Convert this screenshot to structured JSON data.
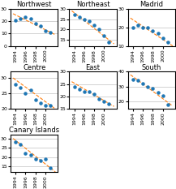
{
  "chart_data": [
    {
      "type": "scatter",
      "title": "Northwest",
      "xlim": [
        1993,
        2002.5
      ],
      "xticks": [
        1994,
        1996,
        1998,
        2000
      ],
      "ylim": [
        0,
        30
      ],
      "yticks": [
        0,
        10,
        20,
        30
      ],
      "grid": "y",
      "series": [
        {
          "type": "scatter",
          "x": [
            1994,
            1995,
            1996,
            1997,
            1998,
            1999,
            2000,
            2001
          ],
          "values": [
            21,
            22,
            23,
            22,
            18,
            16,
            12,
            11
          ]
        },
        {
          "type": "line",
          "line_style": "dashed",
          "x": [
            1993.5,
            2002
          ],
          "values": [
            26,
            9
          ]
        }
      ]
    },
    {
      "type": "scatter",
      "title": "Northeast",
      "xlim": [
        1993,
        2002.5
      ],
      "xticks": [
        1994,
        1996,
        1998,
        2000
      ],
      "ylim": [
        12,
        30
      ],
      "yticks": [
        15,
        20,
        25,
        30
      ],
      "grid": "y",
      "series": [
        {
          "type": "scatter",
          "x": [
            1994,
            1995,
            1996,
            1997,
            1998,
            1999,
            2000,
            2001
          ],
          "values": [
            27,
            26,
            25,
            24,
            22,
            20,
            17,
            14
          ]
        },
        {
          "type": "line",
          "line_style": "dashed",
          "x": [
            1993.5,
            2002
          ],
          "values": [
            29,
            13
          ]
        }
      ]
    },
    {
      "type": "scatter",
      "title": "Madrid",
      "xlim": [
        1993,
        2002.5
      ],
      "xticks": [
        1994,
        1996,
        1998,
        2000
      ],
      "ylim": [
        10,
        30
      ],
      "yticks": [
        10,
        20,
        30
      ],
      "grid": "y",
      "series": [
        {
          "type": "scatter",
          "x": [
            1994,
            1995,
            1996,
            1997,
            1998,
            1999,
            2000,
            2001
          ],
          "values": [
            20,
            21,
            20,
            20,
            18,
            17,
            14,
            12
          ]
        },
        {
          "type": "line",
          "line_style": "dashed",
          "x": [
            1993.5,
            2002
          ],
          "values": [
            25,
            10
          ]
        }
      ]
    },
    {
      "type": "scatter",
      "title": "Centre",
      "xlim": [
        1993,
        2002.5
      ],
      "xticks": [
        1994,
        1996,
        1998,
        2000
      ],
      "ylim": [
        20,
        32
      ],
      "yticks": [
        20,
        25,
        30
      ],
      "grid": "y",
      "series": [
        {
          "type": "scatter",
          "x": [
            1994,
            1995,
            1996,
            1997,
            1998,
            1999,
            2000,
            2001
          ],
          "values": [
            28,
            27,
            25,
            26,
            23,
            22,
            21,
            21
          ]
        },
        {
          "type": "line",
          "line_style": "dashed",
          "x": [
            1993.5,
            2002
          ],
          "values": [
            30,
            20
          ]
        }
      ]
    },
    {
      "type": "scatter",
      "title": "East",
      "xlim": [
        1993,
        2002.5
      ],
      "xticks": [
        1994,
        1996,
        1998,
        2000
      ],
      "ylim": [
        15,
        30
      ],
      "yticks": [
        15,
        20,
        25,
        30
      ],
      "grid": "y",
      "series": [
        {
          "type": "scatter",
          "x": [
            1994,
            1995,
            1996,
            1997,
            1998,
            1999,
            2000,
            2001
          ],
          "values": [
            24,
            23,
            22,
            22,
            21,
            19,
            18,
            17
          ]
        },
        {
          "type": "line",
          "line_style": "dashed",
          "x": [
            1993.5,
            2002
          ],
          "values": [
            26,
            16
          ]
        }
      ]
    },
    {
      "type": "scatter",
      "title": "South",
      "xlim": [
        1993,
        2002.5
      ],
      "xticks": [
        1994,
        1996,
        1998,
        2000
      ],
      "ylim": [
        15,
        40
      ],
      "yticks": [
        20,
        30,
        40
      ],
      "grid": "y",
      "series": [
        {
          "type": "scatter",
          "x": [
            1994,
            1995,
            1996,
            1997,
            1998,
            1999,
            2000,
            2001
          ],
          "values": [
            35,
            34,
            32,
            30,
            29,
            26,
            24,
            18
          ]
        },
        {
          "type": "line",
          "line_style": "dashed",
          "x": [
            1993.5,
            2002
          ],
          "values": [
            38,
            17
          ]
        }
      ]
    },
    {
      "type": "scatter",
      "title": "Canary Islands",
      "xlim": [
        1993,
        2002.5
      ],
      "xticks": [
        1994,
        1996,
        1998,
        2000
      ],
      "ylim": [
        12,
        32
      ],
      "yticks": [
        15,
        20,
        25,
        30
      ],
      "grid": "y",
      "series": [
        {
          "type": "scatter",
          "x": [
            1994,
            1995,
            1996,
            1997,
            1998,
            1999,
            2000,
            2001
          ],
          "values": [
            28,
            27,
            22,
            21,
            19,
            18,
            19,
            14
          ]
        },
        {
          "type": "line",
          "line_style": "dashed",
          "x": [
            1993.5,
            2002
          ],
          "values": [
            30,
            12
          ]
        }
      ]
    }
  ]
}
